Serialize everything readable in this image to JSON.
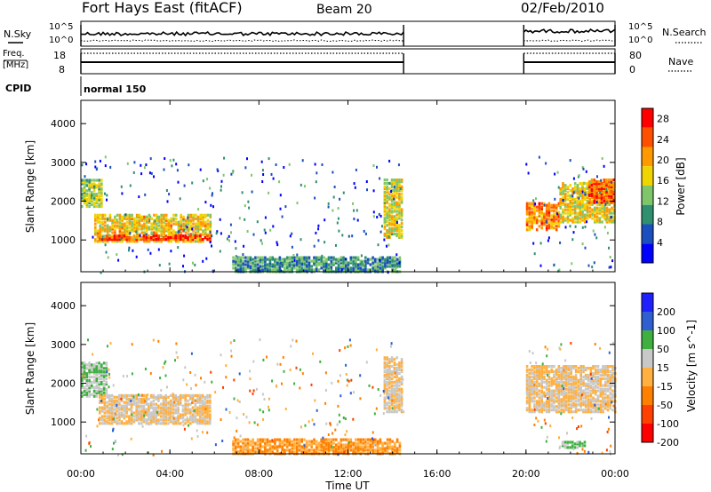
{
  "header": {
    "station": "Fort Hays East (fitACF)",
    "beam": "Beam 20",
    "date": "02/Feb/2010"
  },
  "status_panels": {
    "nsky_label": "N.Sky",
    "nsky_ticks": [
      "10^5",
      "10^0"
    ],
    "nsearch_label": "N.Search",
    "freq_label_line1": "Freq.",
    "freq_label_line2": "[MHz]",
    "freq_ticks": [
      "18",
      "8"
    ],
    "nave_label": "Nave",
    "nave_ticks": [
      "80",
      "0"
    ],
    "cpid_label": "CPID",
    "cpid_value": "normal 150"
  },
  "chart_data": [
    {
      "type": "heatmap",
      "panel": "power",
      "ylabel": "Slant Range [km]",
      "xlabel": "",
      "x_ticks": [
        "00:00",
        "04:00",
        "08:00",
        "12:00",
        "16:00",
        "20:00",
        "00:00"
      ],
      "y_ticks": [
        "1000",
        "2000",
        "3000",
        "4000"
      ],
      "xlim_hours": [
        0,
        24
      ],
      "ylim_km": [
        180,
        4600
      ],
      "colorbar_label": "Power [dB]",
      "colorbar_ticks": [
        "4",
        "8",
        "12",
        "16",
        "20",
        "24",
        "28"
      ],
      "colorbar_range": [
        0,
        30
      ],
      "colorscale": [
        "#0000ff",
        "#1b4fbf",
        "#2f8f6f",
        "#7fc66a",
        "#f0d400",
        "#ff9900",
        "#ff5000",
        "#ff0000"
      ],
      "data_gaps_hours": [
        [
          14.5,
          19.9
        ]
      ],
      "echo_regions": [
        {
          "t_start": 0.0,
          "t_end": 0.9,
          "r_min": 1900,
          "r_max": 2600,
          "power_db": 14
        },
        {
          "t_start": 0.6,
          "t_end": 5.8,
          "r_min": 1000,
          "r_max": 1700,
          "power_db": 18
        },
        {
          "t_start": 0.8,
          "t_end": 5.8,
          "r_min": 1050,
          "r_max": 1150,
          "power_db": 26
        },
        {
          "t_start": 6.8,
          "t_end": 14.3,
          "r_min": 220,
          "r_max": 600,
          "power_db": 10
        },
        {
          "t_start": 13.6,
          "t_end": 14.4,
          "r_min": 1100,
          "r_max": 2600,
          "power_db": 16
        },
        {
          "t_start": 20.0,
          "t_end": 21.5,
          "r_min": 1300,
          "r_max": 2000,
          "power_db": 22
        },
        {
          "t_start": 21.5,
          "t_end": 24.0,
          "r_min": 1500,
          "r_max": 2500,
          "power_db": 17
        },
        {
          "t_start": 22.8,
          "t_end": 24.0,
          "r_min": 2000,
          "r_max": 2600,
          "power_db": 24
        }
      ]
    },
    {
      "type": "heatmap",
      "panel": "velocity",
      "ylabel": "Slant Range [km]",
      "xlabel": "Time UT",
      "x_ticks": [
        "00:00",
        "04:00",
        "08:00",
        "12:00",
        "16:00",
        "20:00",
        "00:00"
      ],
      "y_ticks": [
        "1000",
        "2000",
        "3000",
        "4000"
      ],
      "xlim_hours": [
        0,
        24
      ],
      "ylim_km": [
        180,
        4600
      ],
      "colorbar_label": "Velocity [m s^-1]",
      "colorbar_ticks": [
        "200",
        "100",
        "50",
        "15",
        "-15",
        "-50",
        "-100",
        "-200"
      ],
      "colorbar_range": [
        -250,
        250
      ],
      "colorscale": [
        "#2020ff",
        "#2f5fd0",
        "#3fb040",
        "#c8c8c8",
        "#ffb040",
        "#ff8000",
        "#ff4000",
        "#ff0000"
      ],
      "data_gaps_hours": [
        [
          14.5,
          19.9
        ]
      ],
      "echo_regions": [
        {
          "t_start": 0.0,
          "t_end": 1.2,
          "r_min": 1700,
          "r_max": 2600,
          "velocity": 60
        },
        {
          "t_start": 0.8,
          "t_end": 5.8,
          "r_min": 1000,
          "r_max": 1750,
          "velocity": 0
        },
        {
          "t_start": 6.8,
          "t_end": 14.3,
          "r_min": 220,
          "r_max": 600,
          "velocity": -70
        },
        {
          "t_start": 13.6,
          "t_end": 14.4,
          "r_min": 1300,
          "r_max": 2700,
          "velocity": 0
        },
        {
          "t_start": 20.0,
          "t_end": 24.0,
          "r_min": 1300,
          "r_max": 2500,
          "velocity": 0
        },
        {
          "t_start": 21.6,
          "t_end": 22.6,
          "r_min": 380,
          "r_max": 520,
          "velocity": 80
        }
      ]
    }
  ]
}
